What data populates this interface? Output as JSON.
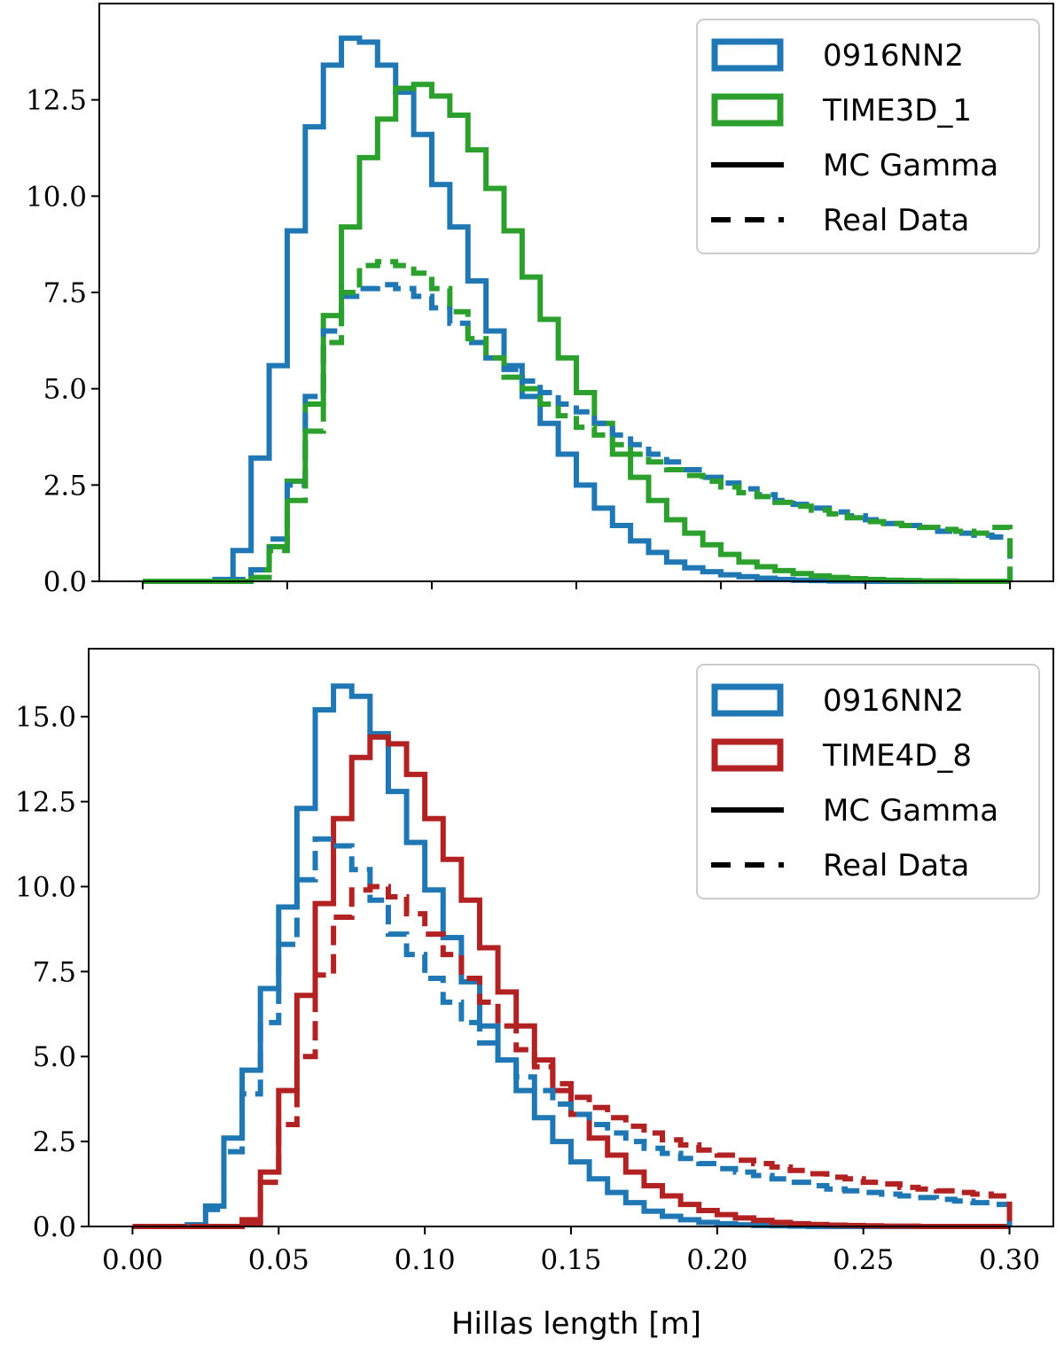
{
  "chart_data": [
    {
      "type": "histogram",
      "panel": "top",
      "xlabel": "",
      "ylabel": "",
      "xlim": [
        -0.015,
        0.315
      ],
      "ylim": [
        0,
        15
      ],
      "xticks": [
        0.0,
        0.05,
        0.1,
        0.15,
        0.2,
        0.25,
        0.3
      ],
      "yticks": [
        "0.0",
        "2.5",
        "5.0",
        "7.5",
        "10.0",
        "12.5"
      ],
      "bins": {
        "start": 0.0,
        "width": 0.00625,
        "count": 48
      },
      "legend": {
        "placement": "top-right",
        "entries": [
          {
            "kind": "patch",
            "color": "#1f77b4",
            "label": "0916NN2"
          },
          {
            "kind": "patch",
            "color": "#2ca02c",
            "label": "TIME3D_1"
          },
          {
            "kind": "solid",
            "color": "#000000",
            "label": "MC Gamma"
          },
          {
            "kind": "dashed",
            "color": "#000000",
            "label": "Real Data"
          }
        ]
      },
      "series": [
        {
          "name": "0916NN2 MC Gamma",
          "color": "#1f77b4",
          "dashed": false,
          "values": [
            0,
            0,
            0,
            0,
            0.05,
            0.8,
            3.2,
            5.6,
            9.1,
            11.8,
            13.4,
            14.1,
            14.0,
            13.4,
            12.7,
            11.6,
            10.3,
            9.2,
            7.8,
            6.5,
            5.6,
            4.8,
            4.1,
            3.3,
            2.5,
            1.9,
            1.45,
            1.05,
            0.75,
            0.5,
            0.35,
            0.25,
            0.17,
            0.12,
            0.08,
            0.05,
            0.03,
            0.02,
            0.01,
            0.01,
            0,
            0,
            0,
            0,
            0,
            0,
            0,
            0
          ]
        },
        {
          "name": "TIME3D_1 MC Gamma",
          "color": "#2ca02c",
          "dashed": false,
          "values": [
            0,
            0,
            0,
            0,
            0,
            0,
            0.3,
            0.9,
            2.6,
            4.6,
            6.9,
            9.2,
            11.0,
            12.0,
            12.8,
            12.9,
            12.6,
            12.1,
            11.2,
            10.2,
            9.1,
            7.9,
            6.8,
            5.8,
            4.9,
            4.1,
            3.3,
            2.7,
            2.1,
            1.6,
            1.25,
            0.95,
            0.7,
            0.5,
            0.38,
            0.28,
            0.2,
            0.14,
            0.1,
            0.07,
            0.05,
            0.03,
            0.02,
            0.01,
            0.01,
            0,
            0,
            0
          ]
        },
        {
          "name": "0916NN2 Real Data",
          "color": "#1f77b4",
          "dashed": true,
          "values": [
            0,
            0,
            0,
            0,
            0,
            0.05,
            0.3,
            1.1,
            2.5,
            4.8,
            6.5,
            7.4,
            7.6,
            7.7,
            7.6,
            7.4,
            7.1,
            6.7,
            6.2,
            5.8,
            5.5,
            5.2,
            4.9,
            4.6,
            4.4,
            4.1,
            3.8,
            3.55,
            3.3,
            3.1,
            2.9,
            2.7,
            2.55,
            2.4,
            2.25,
            2.1,
            2.0,
            1.9,
            1.8,
            1.7,
            1.6,
            1.5,
            1.45,
            1.4,
            1.3,
            1.25,
            1.2,
            1.15
          ]
        },
        {
          "name": "TIME3D_1 Real Data",
          "color": "#2ca02c",
          "dashed": true,
          "values": [
            0,
            0,
            0,
            0,
            0,
            0,
            0.1,
            0.8,
            2.1,
            3.9,
            6.2,
            7.5,
            8.2,
            8.3,
            8.2,
            8.0,
            7.6,
            7.0,
            6.3,
            5.8,
            5.3,
            5.0,
            4.6,
            4.3,
            4.0,
            3.8,
            3.55,
            3.3,
            3.1,
            2.9,
            2.75,
            2.6,
            2.45,
            2.3,
            2.2,
            2.05,
            1.95,
            1.85,
            1.75,
            1.65,
            1.55,
            1.5,
            1.45,
            1.4,
            1.35,
            1.3,
            1.25,
            1.4
          ]
        }
      ]
    },
    {
      "type": "histogram",
      "panel": "bottom",
      "xlabel": "Hillas length [m]",
      "ylabel": "",
      "xlim": [
        -0.015,
        0.315
      ],
      "ylim": [
        0,
        17
      ],
      "xticks": [
        0.0,
        0.05,
        0.1,
        0.15,
        0.2,
        0.25,
        0.3
      ],
      "xticklabels": [
        "0.00",
        "0.05",
        "0.10",
        "0.15",
        "0.20",
        "0.25",
        "0.30"
      ],
      "yticks": [
        "0.0",
        "2.5",
        "5.0",
        "7.5",
        "10.0",
        "12.5",
        "15.0"
      ],
      "bins": {
        "start": 0.0,
        "width": 0.00625,
        "count": 48
      },
      "legend": {
        "placement": "top-right",
        "entries": [
          {
            "kind": "patch",
            "color": "#1f77b4",
            "label": "0916NN2"
          },
          {
            "kind": "patch",
            "color": "#b22222",
            "label": "TIME4D_8"
          },
          {
            "kind": "solid",
            "color": "#000000",
            "label": "MC Gamma"
          },
          {
            "kind": "dashed",
            "color": "#000000",
            "label": "Real Data"
          }
        ]
      },
      "series": [
        {
          "name": "0916NN2 MC Gamma",
          "color": "#1f77b4",
          "dashed": false,
          "values": [
            0,
            0,
            0,
            0.05,
            0.6,
            2.6,
            4.6,
            7.0,
            9.4,
            12.3,
            15.2,
            15.9,
            15.6,
            14.5,
            12.8,
            11.3,
            9.9,
            8.5,
            7.2,
            5.9,
            4.9,
            4.0,
            3.2,
            2.5,
            1.9,
            1.4,
            1.0,
            0.7,
            0.45,
            0.3,
            0.2,
            0.12,
            0.08,
            0.05,
            0.03,
            0.02,
            0.01,
            0,
            0,
            0,
            0,
            0,
            0,
            0,
            0,
            0,
            0,
            0
          ]
        },
        {
          "name": "TIME4D_8 MC Gamma",
          "color": "#b22222",
          "dashed": false,
          "values": [
            0,
            0,
            0,
            0,
            0,
            0,
            0.2,
            1.6,
            4.0,
            6.8,
            9.5,
            12.0,
            13.8,
            14.4,
            14.2,
            13.3,
            12.0,
            10.8,
            9.6,
            8.2,
            6.9,
            5.9,
            4.9,
            4.0,
            3.3,
            2.6,
            2.1,
            1.6,
            1.2,
            0.9,
            0.65,
            0.47,
            0.35,
            0.25,
            0.18,
            0.12,
            0.08,
            0.06,
            0.04,
            0.03,
            0.02,
            0.01,
            0.01,
            0,
            0,
            0,
            0,
            0
          ]
        },
        {
          "name": "0916NN2 Real Data",
          "color": "#1f77b4",
          "dashed": true,
          "values": [
            0,
            0,
            0,
            0.05,
            0.5,
            2.2,
            3.9,
            6.0,
            8.3,
            10.2,
            11.4,
            11.2,
            10.5,
            9.6,
            8.6,
            8.0,
            7.3,
            6.6,
            6.0,
            5.4,
            4.9,
            4.4,
            4.0,
            3.6,
            3.3,
            3.0,
            2.75,
            2.5,
            2.3,
            2.15,
            2.0,
            1.85,
            1.7,
            1.6,
            1.5,
            1.4,
            1.3,
            1.2,
            1.1,
            1.05,
            1.0,
            0.95,
            0.9,
            0.85,
            0.8,
            0.75,
            0.7,
            0.65
          ]
        },
        {
          "name": "TIME4D_8 Real Data",
          "color": "#b22222",
          "dashed": true,
          "values": [
            0,
            0,
            0,
            0,
            0,
            0,
            0.1,
            1.3,
            3.0,
            5.0,
            7.4,
            9.1,
            9.9,
            10.0,
            9.7,
            9.2,
            8.6,
            8.0,
            7.3,
            6.6,
            5.9,
            5.2,
            4.7,
            4.2,
            3.8,
            3.5,
            3.2,
            2.95,
            2.75,
            2.55,
            2.4,
            2.25,
            2.1,
            1.95,
            1.85,
            1.75,
            1.65,
            1.55,
            1.45,
            1.4,
            1.3,
            1.25,
            1.15,
            1.1,
            1.05,
            1.0,
            0.95,
            0.9
          ]
        }
      ]
    }
  ]
}
